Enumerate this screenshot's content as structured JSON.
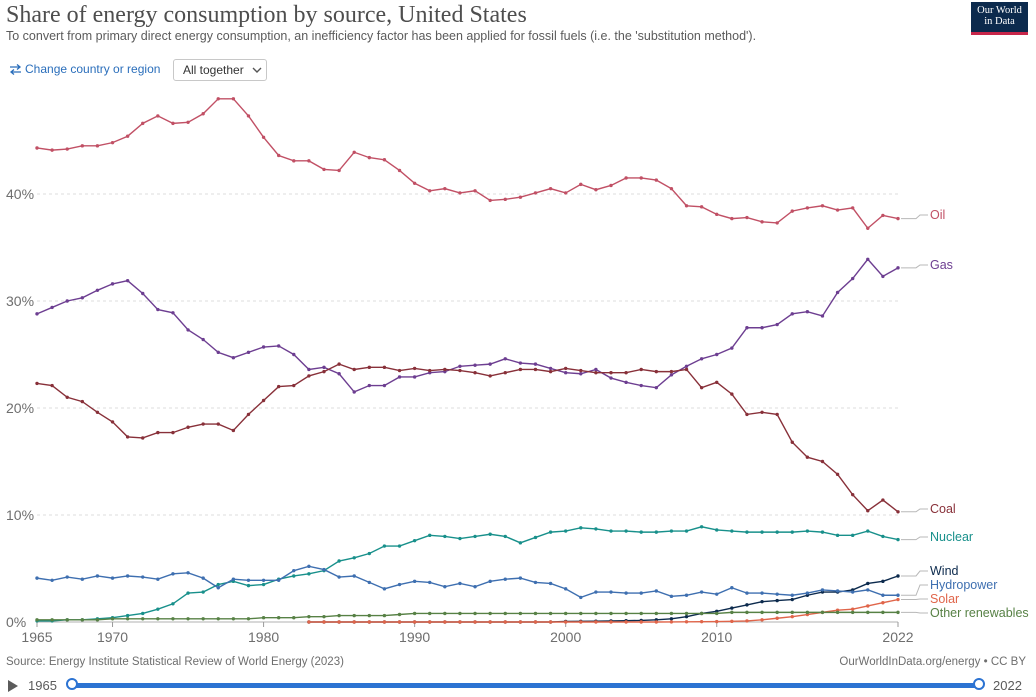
{
  "header": {
    "title": "Share of energy consumption by source, United States",
    "subtitle": "To convert from primary direct energy consumption, an inefficiency factor has been applied for fossil fuels (i.e. the 'substitution method').",
    "logo_line1": "Our World",
    "logo_line2": "in Data"
  },
  "controls": {
    "change_region": "Change country or region",
    "select_value": "All together"
  },
  "footer": {
    "source": "Source: Energy Institute Statistical Review of World Energy (2023)",
    "credit": "OurWorldInData.org/energy • CC BY"
  },
  "timeline": {
    "start": "1965",
    "end": "2022"
  },
  "colors": {
    "Oil": "#c15065",
    "Gas": "#6d3e91",
    "Coal": "#883039",
    "Nuclear": "#18908b",
    "Wind": "#0c2a4d",
    "Hydropower": "#3e6fb0",
    "Solar": "#e0654a",
    "Other renewables": "#578145"
  },
  "chart_data": {
    "type": "line",
    "x": [
      1965,
      1966,
      1967,
      1968,
      1969,
      1970,
      1971,
      1972,
      1973,
      1974,
      1975,
      1976,
      1977,
      1978,
      1979,
      1980,
      1981,
      1982,
      1983,
      1984,
      1985,
      1986,
      1987,
      1988,
      1989,
      1990,
      1991,
      1992,
      1993,
      1994,
      1995,
      1996,
      1997,
      1998,
      1999,
      2000,
      2001,
      2002,
      2003,
      2004,
      2005,
      2006,
      2007,
      2008,
      2009,
      2010,
      2011,
      2012,
      2013,
      2014,
      2015,
      2016,
      2017,
      2018,
      2019,
      2020,
      2021,
      2022
    ],
    "ylim": [
      0,
      50
    ],
    "yticks": [
      0,
      10,
      20,
      30,
      40
    ],
    "ytick_labels": [
      "0%",
      "10%",
      "20%",
      "30%",
      "40%"
    ],
    "xticks": [
      1965,
      1970,
      1980,
      1990,
      2000,
      2010,
      2022
    ],
    "xtick_labels": [
      "1965",
      "1970",
      "1980",
      "1990",
      "2000",
      "2010",
      "2022"
    ],
    "series": [
      {
        "name": "Oil",
        "values": [
          44.3,
          44.1,
          44.2,
          44.5,
          44.5,
          44.8,
          45.4,
          46.6,
          47.3,
          46.6,
          46.7,
          47.5,
          48.9,
          48.9,
          47.3,
          45.3,
          43.6,
          43.1,
          43.1,
          42.3,
          42.2,
          43.9,
          43.4,
          43.2,
          42.2,
          41.0,
          40.3,
          40.5,
          40.1,
          40.3,
          39.4,
          39.5,
          39.7,
          40.1,
          40.5,
          40.1,
          40.9,
          40.4,
          40.8,
          41.5,
          41.5,
          41.3,
          40.5,
          38.9,
          38.8,
          38.1,
          37.7,
          37.8,
          37.4,
          37.3,
          38.4,
          38.7,
          38.9,
          38.5,
          38.7,
          36.8,
          38.0,
          37.7
        ]
      },
      {
        "name": "Gas",
        "values": [
          28.8,
          29.4,
          30.0,
          30.3,
          31.0,
          31.6,
          31.9,
          30.7,
          29.2,
          28.9,
          27.3,
          26.4,
          25.2,
          24.7,
          25.2,
          25.7,
          25.8,
          25.0,
          23.6,
          23.8,
          23.2,
          21.5,
          22.1,
          22.1,
          22.9,
          22.9,
          23.3,
          23.4,
          23.9,
          24.0,
          24.1,
          24.6,
          24.2,
          24.1,
          23.7,
          23.3,
          23.2,
          23.6,
          22.8,
          22.4,
          22.1,
          21.9,
          23.1,
          23.9,
          24.6,
          25.0,
          25.6,
          27.5,
          27.5,
          27.8,
          28.8,
          29.0,
          28.6,
          30.8,
          32.1,
          33.9,
          32.3,
          33.1
        ]
      },
      {
        "name": "Coal",
        "values": [
          22.3,
          22.1,
          21.0,
          20.6,
          19.6,
          18.7,
          17.3,
          17.2,
          17.7,
          17.7,
          18.2,
          18.5,
          18.5,
          17.9,
          19.4,
          20.7,
          22.0,
          22.1,
          23.0,
          23.4,
          24.1,
          23.6,
          23.8,
          23.8,
          23.5,
          23.7,
          23.5,
          23.6,
          23.5,
          23.3,
          23.0,
          23.3,
          23.6,
          23.6,
          23.4,
          23.7,
          23.5,
          23.3,
          23.3,
          23.3,
          23.6,
          23.4,
          23.4,
          23.6,
          21.9,
          22.4,
          21.3,
          19.4,
          19.6,
          19.4,
          16.8,
          15.4,
          15.0,
          13.8,
          11.9,
          10.4,
          11.4,
          10.3
        ]
      },
      {
        "name": "Nuclear",
        "values": [
          0.1,
          0.1,
          0.2,
          0.2,
          0.3,
          0.4,
          0.6,
          0.8,
          1.2,
          1.7,
          2.7,
          2.8,
          3.5,
          3.8,
          3.4,
          3.5,
          4.0,
          4.3,
          4.5,
          4.8,
          5.7,
          6.0,
          6.4,
          7.1,
          7.1,
          7.6,
          8.1,
          8.0,
          7.8,
          8.0,
          8.2,
          8.0,
          7.4,
          7.9,
          8.4,
          8.5,
          8.8,
          8.7,
          8.5,
          8.5,
          8.4,
          8.4,
          8.5,
          8.5,
          8.9,
          8.6,
          8.5,
          8.4,
          8.4,
          8.4,
          8.4,
          8.5,
          8.4,
          8.1,
          8.1,
          8.5,
          8.0,
          7.7
        ]
      },
      {
        "name": "Wind",
        "values": [
          0,
          0,
          0,
          0,
          0,
          0,
          0,
          0,
          0,
          0,
          0,
          0,
          0,
          0,
          0,
          0,
          0,
          0,
          0,
          0,
          0,
          0,
          0,
          0,
          0,
          0,
          0,
          0,
          0,
          0,
          0,
          0,
          0,
          0,
          0,
          0.05,
          0.06,
          0.08,
          0.1,
          0.12,
          0.15,
          0.2,
          0.3,
          0.5,
          0.8,
          1.0,
          1.3,
          1.6,
          1.9,
          2.0,
          2.1,
          2.5,
          2.8,
          2.8,
          3.0,
          3.6,
          3.8,
          4.3
        ]
      },
      {
        "name": "Hydropower",
        "values": [
          4.1,
          3.9,
          4.2,
          4.0,
          4.3,
          4.1,
          4.3,
          4.2,
          4.0,
          4.5,
          4.6,
          4.1,
          3.2,
          4.0,
          3.9,
          3.9,
          3.9,
          4.8,
          5.2,
          4.9,
          4.2,
          4.3,
          3.7,
          3.1,
          3.5,
          3.8,
          3.7,
          3.3,
          3.6,
          3.3,
          3.8,
          4.0,
          4.1,
          3.7,
          3.6,
          3.1,
          2.3,
          2.8,
          2.8,
          2.7,
          2.7,
          2.9,
          2.4,
          2.5,
          2.8,
          2.6,
          3.2,
          2.7,
          2.7,
          2.6,
          2.5,
          2.7,
          3.0,
          2.9,
          2.8,
          3.0,
          2.5,
          2.5
        ]
      },
      {
        "name": "Solar",
        "values": [
          0,
          0,
          0,
          0,
          0,
          0,
          0,
          0,
          0,
          0,
          0,
          0,
          0,
          0,
          0,
          0,
          0,
          0,
          0,
          0,
          0,
          0,
          0,
          0,
          0,
          0,
          0,
          0,
          0,
          0,
          0,
          0,
          0,
          0,
          0,
          0,
          0,
          0,
          0,
          0,
          0,
          0,
          0.01,
          0.02,
          0.03,
          0.04,
          0.06,
          0.1,
          0.2,
          0.35,
          0.5,
          0.7,
          0.9,
          1.1,
          1.2,
          1.5,
          1.8,
          2.1
        ]
      },
      {
        "name": "Other renewables",
        "values": [
          0.2,
          0.2,
          0.2,
          0.2,
          0.2,
          0.3,
          0.3,
          0.3,
          0.3,
          0.3,
          0.3,
          0.3,
          0.3,
          0.3,
          0.3,
          0.4,
          0.4,
          0.4,
          0.5,
          0.5,
          0.6,
          0.6,
          0.6,
          0.6,
          0.7,
          0.8,
          0.8,
          0.8,
          0.8,
          0.8,
          0.8,
          0.8,
          0.8,
          0.8,
          0.8,
          0.8,
          0.8,
          0.8,
          0.8,
          0.8,
          0.8,
          0.8,
          0.8,
          0.8,
          0.8,
          0.8,
          0.9,
          0.9,
          0.9,
          0.9,
          0.9,
          0.9,
          0.9,
          0.9,
          0.9,
          0.9,
          0.9,
          0.9
        ]
      }
    ],
    "labels_side": "right"
  }
}
